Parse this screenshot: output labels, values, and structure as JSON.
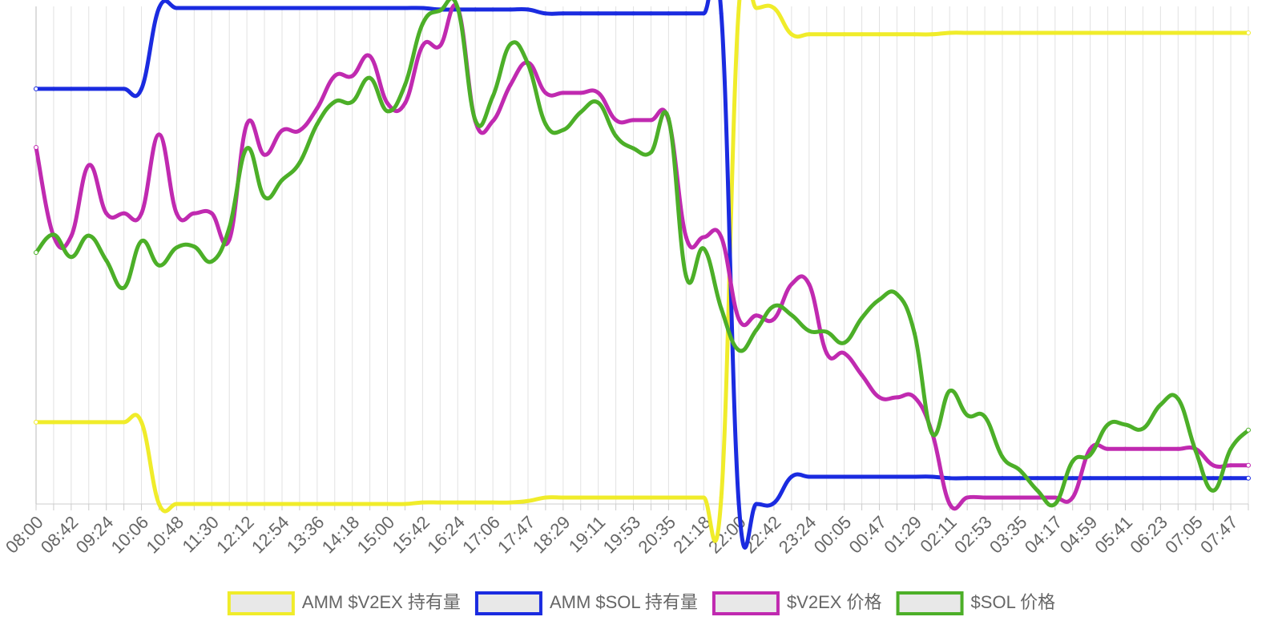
{
  "chart_data": {
    "type": "line",
    "categories": [
      "08:00",
      null,
      "08:42",
      null,
      "09:24",
      null,
      "10:06",
      null,
      "10:48",
      null,
      "11:30",
      null,
      "12:12",
      null,
      "12:54",
      null,
      "13:36",
      null,
      "14:18",
      null,
      "15:00",
      null,
      "15:42",
      null,
      "16:24",
      null,
      "17:06",
      null,
      "17:47",
      null,
      "18:29",
      null,
      "19:11",
      null,
      "19:53",
      null,
      "20:35",
      null,
      "21:18",
      null,
      "22:00",
      null,
      "22:42",
      null,
      "23:24",
      null,
      "00:05",
      null,
      "00:47",
      null,
      "01:29",
      null,
      "02:11",
      null,
      "02:53",
      null,
      "03:35",
      null,
      "04:17",
      null,
      "04:59",
      null,
      "05:41",
      null,
      "06:23",
      null,
      "07:05",
      null,
      "07:47",
      null
    ],
    "ylim": [
      0,
      100
    ],
    "grid": true,
    "legend": "bottom",
    "series": [
      {
        "name": "AMM $V2EX 持有量",
        "color": "#f0ec2a",
        "values": [
          16.5,
          16.5,
          16.5,
          16.5,
          16.5,
          16.5,
          16.5,
          0,
          0,
          0,
          0,
          0,
          0,
          0,
          0,
          0,
          0,
          0,
          0,
          0,
          0,
          0,
          0.3,
          0.3,
          0.3,
          0.3,
          0.3,
          0.3,
          0.6,
          1.3,
          1.3,
          1.3,
          1.3,
          1.3,
          1.3,
          1.3,
          1.3,
          1.3,
          1.3,
          1.3,
          100,
          100,
          100,
          94.7,
          94.7,
          94.7,
          94.7,
          94.7,
          94.7,
          94.7,
          94.7,
          94.7,
          95,
          95,
          95,
          95,
          95,
          95,
          95,
          95,
          95,
          95,
          95,
          95,
          95,
          95,
          95,
          95,
          95,
          95
        ]
      },
      {
        "name": "AMM $SOL 持有量",
        "color": "#1a2be0",
        "values": [
          83.7,
          83.7,
          83.7,
          83.7,
          83.7,
          83.7,
          83.7,
          100,
          100,
          100,
          100,
          100,
          100,
          100,
          100,
          100,
          100,
          100,
          100,
          100,
          100,
          100,
          100,
          99.7,
          99.7,
          99.7,
          99.7,
          99.7,
          99.7,
          98.9,
          98.9,
          98.9,
          98.9,
          98.9,
          98.9,
          98.9,
          98.9,
          98.9,
          98.9,
          98.9,
          0,
          0,
          0.2,
          5.5,
          5.5,
          5.5,
          5.5,
          5.5,
          5.5,
          5.5,
          5.5,
          5.5,
          5.2,
          5.2,
          5.2,
          5.2,
          5.2,
          5.2,
          5.2,
          5.2,
          5.2,
          5.2,
          5.2,
          5.2,
          5.2,
          5.2,
          5.2,
          5.2,
          5.2,
          5.2
        ]
      },
      {
        "name": "$V2EX 价格",
        "color": "#c02ab0",
        "values": [
          71.9,
          54,
          54,
          68.3,
          58.6,
          58.6,
          58.6,
          74.5,
          58.6,
          58.6,
          58.6,
          53.3,
          76.6,
          70.4,
          75.3,
          75.3,
          79.8,
          86.3,
          86.3,
          90.3,
          80.8,
          80.8,
          92.4,
          92.4,
          100,
          77.2,
          77.2,
          84.5,
          89,
          82.9,
          82.9,
          82.9,
          82.9,
          77.4,
          77.4,
          77.4,
          77.4,
          53.8,
          53.8,
          53.8,
          37.3,
          38,
          37.3,
          44.3,
          44.3,
          30.4,
          30.4,
          26,
          21.5,
          21.5,
          21.5,
          14.4,
          0,
          1.3,
          1.3,
          1.3,
          1.3,
          1.3,
          1.3,
          1.3,
          11.1,
          11.1,
          11.1,
          11.1,
          11.1,
          11.1,
          11.1,
          7.8,
          7.8,
          7.8
        ]
      },
      {
        "name": "$SOL 价格",
        "color": "#4caf28",
        "values": [
          50.7,
          54.3,
          49.8,
          54.1,
          49.1,
          43.6,
          53,
          48.1,
          51.7,
          51.9,
          48.9,
          55.7,
          71.7,
          61.9,
          65.3,
          68.8,
          76.6,
          81.1,
          81.1,
          85.9,
          79.2,
          84.5,
          96.8,
          99.5,
          100,
          77.4,
          82.2,
          92.7,
          88.7,
          76.6,
          75.4,
          79,
          80.9,
          74.2,
          71.7,
          70.9,
          77.7,
          45.9,
          51.5,
          39.4,
          31,
          35.1,
          39.9,
          38.1,
          34.9,
          34.7,
          32.5,
          37.5,
          41.2,
          42.3,
          34.4,
          14.2,
          22.8,
          17.9,
          17.6,
          9.5,
          6.8,
          2.7,
          0,
          8.6,
          9.9,
          16,
          16,
          15.2,
          20,
          21.2,
          10.7,
          2.7,
          11.1,
          14.9
        ]
      }
    ]
  }
}
